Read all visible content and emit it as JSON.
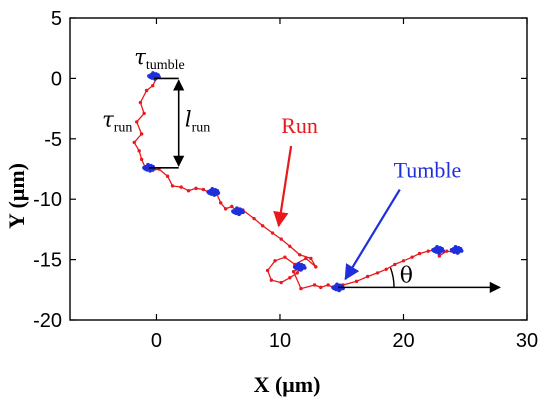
{
  "chart_data": {
    "type": "line",
    "title": "",
    "xlabel": "X (μm)",
    "ylabel": "Y (μm)",
    "xlim": [
      -7,
      30
    ],
    "ylim": [
      -20,
      5
    ],
    "xticks": [
      {
        "value": 0,
        "label": "0"
      },
      {
        "value": 10,
        "label": "10"
      },
      {
        "value": 20,
        "label": "20"
      },
      {
        "value": 30,
        "label": "30"
      }
    ],
    "yticks": [
      {
        "value": 5,
        "label": "5"
      },
      {
        "value": 0,
        "label": "0"
      },
      {
        "value": -5,
        "label": "-5"
      },
      {
        "value": -10,
        "label": "-10"
      },
      {
        "value": -15,
        "label": "-15"
      },
      {
        "value": -20,
        "label": "-20"
      }
    ],
    "grid": false,
    "colors": {
      "run": "#e8191d",
      "tumble": "#1f2fdc",
      "axis": "#000000",
      "annotation": "#000000"
    },
    "series": [
      {
        "role": "trajectory",
        "x": [
          -0.4,
          -0.1,
          0.1,
          -0.3,
          -0.8,
          -1.3,
          -1.0,
          -1.6,
          -1.2,
          -1.8,
          -1.4,
          -1.2,
          -0.9,
          -0.3,
          0.2,
          0.9,
          1.3,
          2.0,
          2.6,
          3.2,
          3.8,
          4.4,
          4.9,
          5.2,
          5.6,
          6.1,
          6.6,
          7.0,
          7.9,
          8.6,
          9.4,
          10.1,
          10.8,
          11.6,
          12.5,
          12.9,
          12.1,
          11.2,
          10.4,
          9.6,
          9.0,
          9.3,
          10.1,
          10.8,
          11.4,
          11.8,
          11.1,
          11.7,
          12.8,
          13.3,
          13.9,
          14.5,
          15.1,
          16.2,
          17.1,
          17.9,
          18.6,
          19.3,
          20.0,
          20.7,
          21.3,
          22.0,
          22.6,
          22.9,
          23.5,
          24.1,
          24.5
        ],
        "y": [
          0.3,
          0.1,
          0.2,
          -0.6,
          -1.0,
          -2.0,
          -2.9,
          -3.6,
          -4.6,
          -5.3,
          -6.0,
          -6.7,
          -7.4,
          -7.6,
          -7.5,
          -8.1,
          -8.9,
          -9.0,
          -9.3,
          -9.1,
          -9.2,
          -9.5,
          -9.6,
          -10.3,
          -10.8,
          -10.6,
          -11.1,
          -10.9,
          -11.6,
          -12.2,
          -12.8,
          -13.3,
          -13.9,
          -14.6,
          -14.9,
          -15.6,
          -14.9,
          -15.4,
          -14.8,
          -15.1,
          -15.9,
          -16.7,
          -16.9,
          -16.5,
          -16.1,
          -15.5,
          -16.0,
          -17.4,
          -17.1,
          -17.3,
          -17.1,
          -17.4,
          -17.1,
          -16.8,
          -16.4,
          -16.1,
          -15.8,
          -15.4,
          -15.1,
          -14.8,
          -14.5,
          -14.3,
          -14.2,
          -14.7,
          -14.3,
          -14.4,
          -14.2
        ]
      }
    ],
    "tumble_clusters": [
      {
        "x": -0.2,
        "y": 0.2
      },
      {
        "x": -0.6,
        "y": -7.4
      },
      {
        "x": 4.6,
        "y": -9.4
      },
      {
        "x": 6.6,
        "y": -11.0
      },
      {
        "x": 11.6,
        "y": -15.6
      },
      {
        "x": 14.7,
        "y": -17.3
      },
      {
        "x": 22.8,
        "y": -14.2
      },
      {
        "x": 24.3,
        "y": -14.2
      }
    ],
    "annotations": {
      "tau_tumble": {
        "symbol": "τ",
        "sub": "tumble",
        "x": -1.8,
        "y": 1.2
      },
      "tau_run": {
        "symbol": "τ",
        "sub": "run",
        "x": -4.4,
        "y": -4.0
      },
      "l_run": {
        "symbol": "l",
        "sub": "run",
        "x": 2.3,
        "y": -4.0,
        "arrow_from_y": 0.0,
        "arrow_to_y": -7.4,
        "arrow_x": 1.8
      },
      "run": {
        "text": "Run",
        "x": 10.1,
        "y": -4.5,
        "arrow_from": [
          10.9,
          -5.6
        ],
        "arrow_to": [
          9.9,
          -12.2
        ]
      },
      "tumble": {
        "text": "Tumble",
        "x": 19.2,
        "y": -8.2,
        "arrow_from": [
          19.7,
          -9.2
        ],
        "arrow_to": [
          15.3,
          -16.6
        ]
      },
      "theta": {
        "text": "θ",
        "x": 19.7,
        "y": -16.9,
        "ray_from": [
          14.7,
          -17.3
        ],
        "ray_to": [
          27.8,
          -17.3
        ],
        "traj_to": [
          22.8,
          -14.2
        ]
      }
    }
  }
}
